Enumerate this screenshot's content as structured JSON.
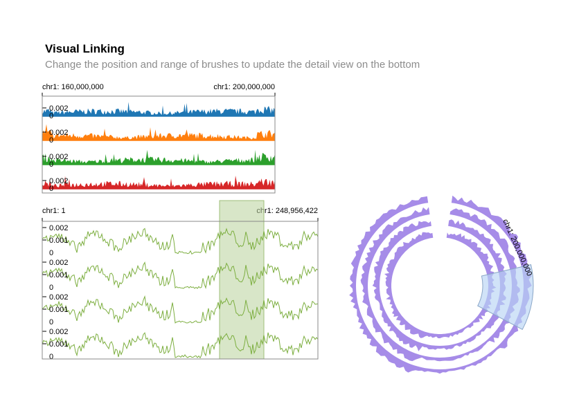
{
  "header": {
    "title": "Visual Linking",
    "subtitle": "Change the position and range of brushes to update the detail view on the bottom"
  },
  "colors": {
    "blue": "#1f77b4",
    "orange": "#ff7f0e",
    "green": "#2ca02c",
    "red": "#d62728",
    "line": "#7cae3f",
    "brush_linear": "#b8d19a",
    "circular": "#a68ce8",
    "brush_circular": "#b8d4f5"
  },
  "chart_data": [
    {
      "type": "area",
      "view": "top-detail",
      "domain_label_left": "chr1: 160,000,000",
      "domain_label_right": "chr1: 200,000,000",
      "x_domain": [
        160000000,
        200000000
      ],
      "y_tick_labels": [
        "0.002",
        "0"
      ],
      "ylim": [
        0,
        0.0025
      ],
      "tracks": [
        {
          "color": "blue"
        },
        {
          "color": "orange"
        },
        {
          "color": "green"
        },
        {
          "color": "red"
        }
      ]
    },
    {
      "type": "line",
      "view": "overview-linear",
      "domain_label_left": "chr1: 1",
      "domain_label_right": "chr1: 248,956,422",
      "x_domain": [
        1,
        248956422
      ],
      "y_tick_labels": [
        "0.002",
        "0.001",
        "0"
      ],
      "ylim": [
        0,
        0.0025
      ],
      "track_count": 4,
      "brush": {
        "range": [
          160000000,
          200000000
        ]
      }
    },
    {
      "type": "area",
      "view": "overview-circular",
      "brush_label": "chr1: 200,000,000",
      "ring_count": 4
    }
  ]
}
